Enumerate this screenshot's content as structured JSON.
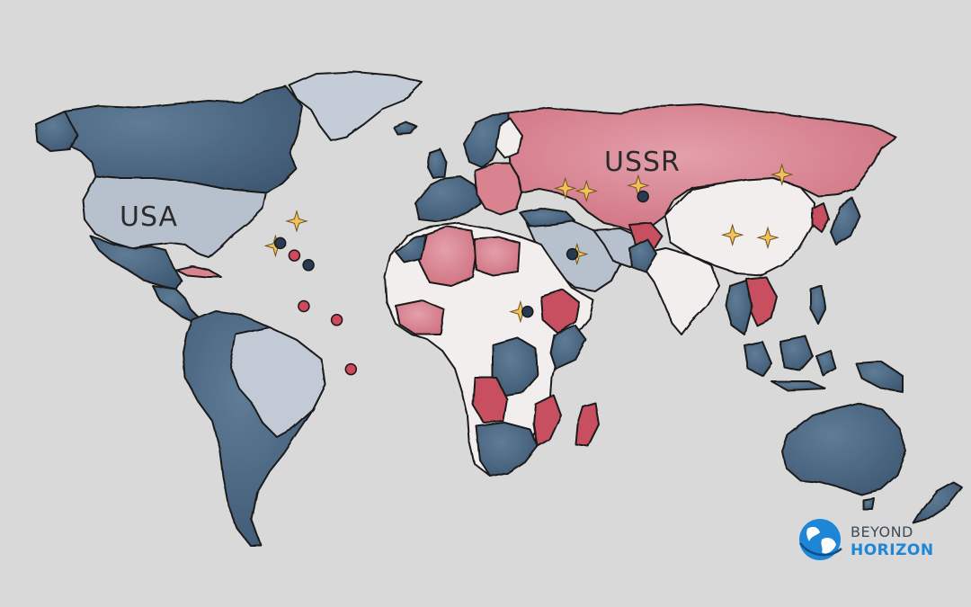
{
  "labels": {
    "usa": "USA",
    "ussr": "USSR"
  },
  "logo": {
    "line1": "BEYOND",
    "line2": "HORIZON",
    "icon": "globe-icon"
  },
  "colors": {
    "background": "#d9d9d9",
    "us_aligned": "#4d6a85",
    "us_aligned_light": "#b9c3d0",
    "ussr_aligned": "#d98290",
    "ussr_strong": "#c8505f",
    "neutral": "#f2eeee",
    "outline": "#1a1a1a",
    "star": "#f1c25a",
    "dot_dark": "#263a52",
    "dot_red": "#d0485a",
    "logo_blue": "#1e86d6"
  },
  "markers": {
    "stars": [
      {
        "name": "cuba-star",
        "lon": -79,
        "lat": 21
      },
      {
        "name": "central-america-star",
        "lon": -88,
        "lat": 12
      },
      {
        "name": "lebanon-star",
        "lon": 35,
        "lat": 33
      },
      {
        "name": "iraq-star",
        "lon": 44,
        "lat": 32
      },
      {
        "name": "afghanistan-star",
        "lon": 66,
        "lat": 34
      },
      {
        "name": "ethiopia-star",
        "lon": 40,
        "lat": 9
      },
      {
        "name": "angola-star",
        "lon": 16,
        "lat": -12
      },
      {
        "name": "vietnam-star",
        "lon": 106,
        "lat": 16
      },
      {
        "name": "philippines-star",
        "lon": 121,
        "lat": 15
      },
      {
        "name": "korea-star",
        "lon": 127,
        "lat": 38
      }
    ],
    "dark_dots": [
      {
        "name": "nicaragua-dot",
        "lon": -86,
        "lat": 13
      },
      {
        "name": "colombia-dot",
        "lon": -74,
        "lat": 5
      },
      {
        "name": "pakistan-dot",
        "lon": 68,
        "lat": 30
      },
      {
        "name": "ethiopia-dot",
        "lon": 38,
        "lat": 9
      },
      {
        "name": "angola-dot",
        "lon": 19,
        "lat": -12
      }
    ],
    "red_dots": [
      {
        "name": "panama-dot",
        "lon": -80,
        "lat": 8.5
      },
      {
        "name": "peru-dot",
        "lon": -76,
        "lat": -10
      },
      {
        "name": "bolivia-dot",
        "lon": -62,
        "lat": -15
      },
      {
        "name": "uruguay-dot",
        "lon": -56,
        "lat": -33
      }
    ]
  }
}
